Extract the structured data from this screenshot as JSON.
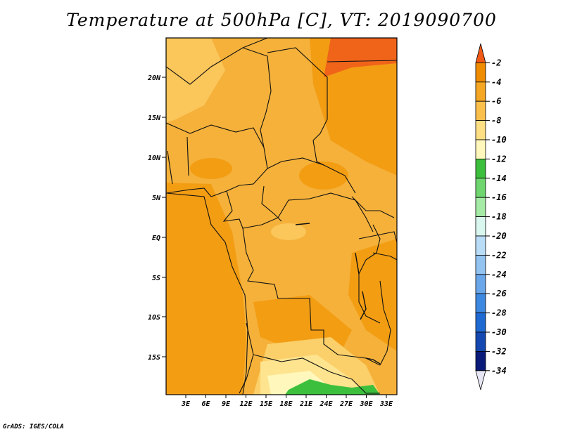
{
  "title": "Temperature at 500hPa [C], VT: 2019090700",
  "credit": "GrADS: IGES/COLA",
  "map": {
    "lat_labels": [
      "20N",
      "15N",
      "10N",
      "5N",
      "EQ",
      "5S",
      "10S",
      "15S"
    ],
    "lon_labels": [
      "3E",
      "6E",
      "9E",
      "12E",
      "15E",
      "18E",
      "21E",
      "24E",
      "27E",
      "30E",
      "33E"
    ]
  },
  "colorbar": {
    "labels": [
      "-2",
      "-4",
      "-6",
      "-8",
      "-10",
      "-12",
      "-14",
      "-16",
      "-18",
      "-20",
      "-22",
      "-24",
      "-26",
      "-28",
      "-30",
      "-32",
      "-34"
    ],
    "colors": [
      "#f05a14",
      "#f08c00",
      "#f5a623",
      "#fbbf4c",
      "#fedf84",
      "#fff7bb",
      "#3cbf3c",
      "#6fd66f",
      "#a5eaa5",
      "#d9f7ee",
      "#b9dcf7",
      "#93c3f0",
      "#6aa7ea",
      "#3d88e0",
      "#1f69d2",
      "#1448b0",
      "#0a1a78",
      "#e6e6f5"
    ]
  }
}
